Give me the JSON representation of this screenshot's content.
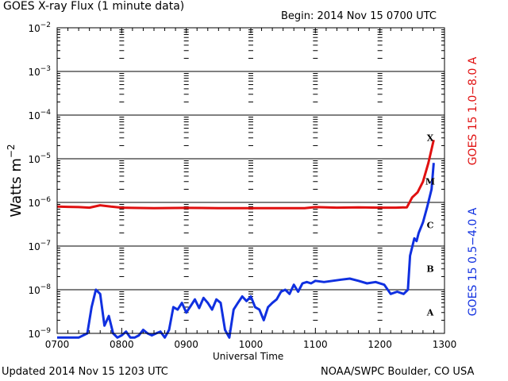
{
  "header": {
    "title": "GOES X-ray Flux (1 minute data)",
    "begin": "Begin: 2014 Nov 15 0700 UTC"
  },
  "footer": {
    "updated": "Updated 2014 Nov 15 1203 UTC",
    "credit": "NOAA/SWPC Boulder, CO USA"
  },
  "chart_data": {
    "type": "line",
    "title": "GOES X-ray Flux (1 minute data)",
    "xlabel": "Universal Time",
    "ylabel": "Watts m^-2",
    "ylabel_base": "Watts m",
    "ylabel_exp": "−2",
    "yscale": "log",
    "xlim": [
      0,
      360
    ],
    "ylim_exp": [
      -9,
      -2
    ],
    "x_ticks": [
      "0700",
      "0800",
      "0900",
      "1000",
      "1100",
      "1200",
      "1300"
    ],
    "y_ticks": [
      {
        "base": "10",
        "exp": "−2"
      },
      {
        "base": "10",
        "exp": "−3"
      },
      {
        "base": "10",
        "exp": "−4"
      },
      {
        "base": "10",
        "exp": "−5"
      },
      {
        "base": "10",
        "exp": "−6"
      },
      {
        "base": "10",
        "exp": "−7"
      },
      {
        "base": "10",
        "exp": "−8"
      },
      {
        "base": "10",
        "exp": "−9"
      }
    ],
    "flare_classes": [
      "X",
      "M",
      "C",
      "B",
      "A"
    ],
    "grid": true,
    "series": [
      {
        "name": "GOES 15 1.0−8.0 A",
        "color": "#e01010",
        "x_minutes": [
          0,
          10,
          20,
          30,
          40,
          50,
          60,
          70,
          90,
          120,
          150,
          180,
          210,
          230,
          240,
          260,
          280,
          300,
          315,
          325,
          330,
          335,
          340,
          345,
          350
        ],
        "flux": [
          8e-07,
          7.9e-07,
          7.8e-07,
          7.6e-07,
          8.6e-07,
          8e-07,
          7.6e-07,
          7.5e-07,
          7.4e-07,
          7.5e-07,
          7.4e-07,
          7.4e-07,
          7.4e-07,
          7.4e-07,
          7.8e-07,
          7.6e-07,
          7.7e-07,
          7.6e-07,
          7.6e-07,
          7.7e-07,
          1.3e-06,
          1.7e-06,
          3e-06,
          8e-06,
          2.7e-05
        ]
      },
      {
        "name": "GOES 15 0.5−4.0 A",
        "color": "#1030e0",
        "x_minutes": [
          0,
          20,
          28,
          32,
          36,
          40,
          44,
          48,
          52,
          56,
          60,
          64,
          68,
          72,
          76,
          80,
          84,
          88,
          92,
          96,
          100,
          104,
          108,
          112,
          116,
          120,
          124,
          128,
          132,
          136,
          140,
          144,
          148,
          152,
          156,
          160,
          164,
          168,
          172,
          176,
          180,
          184,
          188,
          192,
          196,
          200,
          204,
          208,
          212,
          216,
          220,
          224,
          228,
          232,
          236,
          240,
          248,
          256,
          264,
          272,
          280,
          288,
          296,
          304,
          310,
          316,
          322,
          326,
          328,
          332,
          334,
          336,
          340,
          344,
          348,
          350
        ],
        "flux": [
          8e-10,
          8e-10,
          1e-09,
          4e-09,
          1e-08,
          8e-09,
          1.5e-09,
          2.5e-09,
          1e-09,
          8e-10,
          9e-10,
          1.1e-09,
          8e-10,
          8e-10,
          9e-10,
          1.2e-09,
          1e-09,
          9e-10,
          1e-09,
          1.1e-09,
          8e-10,
          1.2e-09,
          4e-09,
          3.5e-09,
          5e-09,
          3e-09,
          4.2e-09,
          6e-09,
          3.8e-09,
          6.5e-09,
          5e-09,
          3.5e-09,
          6e-09,
          5e-09,
          1.2e-09,
          8e-10,
          3.5e-09,
          5e-09,
          7e-09,
          5.5e-09,
          7e-09,
          4e-09,
          3.5e-09,
          2e-09,
          4e-09,
          5e-09,
          6e-09,
          9e-09,
          1e-08,
          8e-09,
          1.3e-08,
          9e-09,
          1.4e-08,
          1.5e-08,
          1.4e-08,
          1.6e-08,
          1.5e-08,
          1.6e-08,
          1.7e-08,
          1.8e-08,
          1.6e-08,
          1.4e-08,
          1.5e-08,
          1.3e-08,
          8e-09,
          9e-09,
          8e-09,
          1e-08,
          6e-08,
          1.5e-07,
          1.3e-07,
          2e-07,
          3.5e-07,
          8e-07,
          2e-06,
          8e-06
        ]
      }
    ]
  }
}
